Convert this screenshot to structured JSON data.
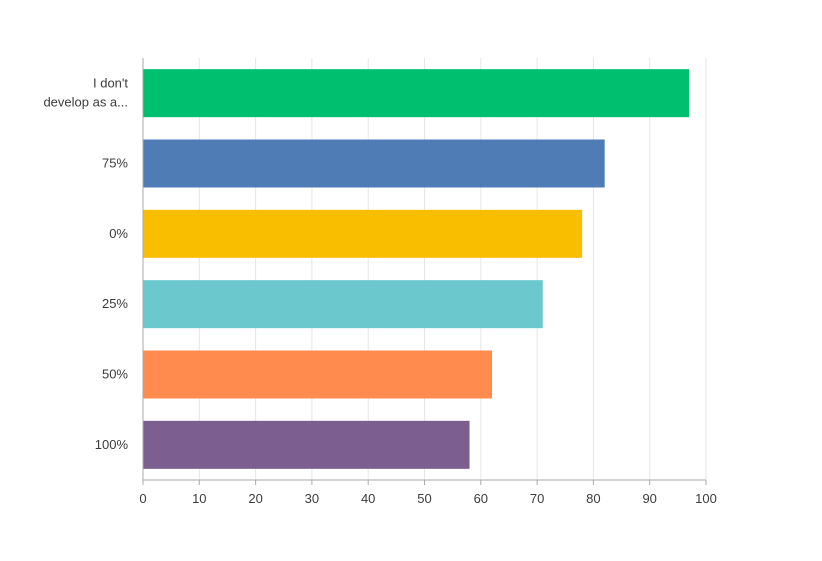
{
  "chart_data": {
    "type": "bar",
    "orientation": "horizontal",
    "title": "",
    "xlabel": "",
    "ylabel": "",
    "categories": [
      {
        "lines": [
          "I don't",
          "develop as a..."
        ],
        "value": 97,
        "color": "#00BF6F"
      },
      {
        "lines": [
          "75%"
        ],
        "value": 82,
        "color": "#507CB6"
      },
      {
        "lines": [
          "0%"
        ],
        "value": 78,
        "color": "#F9BE00"
      },
      {
        "lines": [
          "25%"
        ],
        "value": 71,
        "color": "#6BC8CD"
      },
      {
        "lines": [
          "50%"
        ],
        "value": 62,
        "color": "#FF8B4F"
      },
      {
        "lines": [
          "100%"
        ],
        "value": 58,
        "color": "#7D5E90"
      }
    ],
    "xlim": [
      0,
      100
    ],
    "xticks": [
      "0",
      "10",
      "20",
      "30",
      "40",
      "50",
      "60",
      "70",
      "80",
      "90",
      "100"
    ],
    "grid": true,
    "legend": "none"
  }
}
